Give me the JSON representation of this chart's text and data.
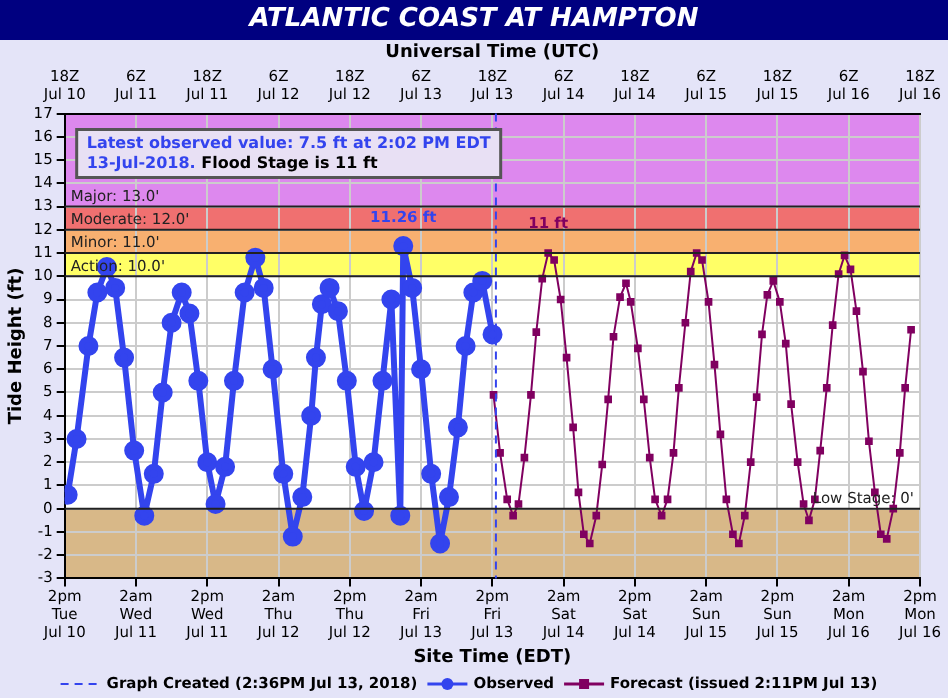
{
  "chart_data": {
    "type": "line",
    "title": "ATLANTIC COAST AT HAMPTON",
    "x2label": "Universal Time (UTC)",
    "xlabel": "Site Time (EDT)",
    "ylabel": "Tide Height (ft)",
    "xlim": [
      "2018-07-10T14:00",
      "2018-07-16T14:00"
    ],
    "x2lim": [
      "2018-07-10T18:00",
      "2018-07-16T18:00"
    ],
    "ylim": [
      -3,
      17
    ],
    "xticks": [
      {
        "value": "2018-07-10T14:00",
        "label": "2pm\nTue\nJul 10"
      },
      {
        "value": "2018-07-11T02:00",
        "label": "2am\nWed\nJul 11"
      },
      {
        "value": "2018-07-11T14:00",
        "label": "2pm\nWed\nJul 11"
      },
      {
        "value": "2018-07-12T02:00",
        "label": "2am\nThu\nJul 12"
      },
      {
        "value": "2018-07-12T14:00",
        "label": "2pm\nThu\nJul 12"
      },
      {
        "value": "2018-07-13T02:00",
        "label": "2am\nFri\nJul 13"
      },
      {
        "value": "2018-07-13T14:00",
        "label": "2pm\nFri\nJul 13"
      },
      {
        "value": "2018-07-14T02:00",
        "label": "2am\nSat\nJul 14"
      },
      {
        "value": "2018-07-14T14:00",
        "label": "2pm\nSat\nJul 14"
      },
      {
        "value": "2018-07-15T02:00",
        "label": "2am\nSun\nJul 15"
      },
      {
        "value": "2018-07-15T14:00",
        "label": "2pm\nSun\nJul 15"
      },
      {
        "value": "2018-07-16T02:00",
        "label": "2am\nMon\nJul 16"
      },
      {
        "value": "2018-07-16T14:00",
        "label": "2pm\nMon\nJul 16"
      }
    ],
    "x2ticks": [
      {
        "value": "2018-07-10T18:00",
        "label": "18Z\nJul 10"
      },
      {
        "value": "2018-07-11T06:00",
        "label": "6Z\nJul 11"
      },
      {
        "value": "2018-07-11T18:00",
        "label": "18Z\nJul 11"
      },
      {
        "value": "2018-07-12T06:00",
        "label": "6Z\nJul 12"
      },
      {
        "value": "2018-07-12T18:00",
        "label": "18Z\nJul 12"
      },
      {
        "value": "2018-07-13T06:00",
        "label": "6Z\nJul 13"
      },
      {
        "value": "2018-07-13T18:00",
        "label": "18Z\nJul 13"
      },
      {
        "value": "2018-07-14T06:00",
        "label": "6Z\nJul 14"
      },
      {
        "value": "2018-07-14T18:00",
        "label": "18Z\nJul 14"
      },
      {
        "value": "2018-07-15T06:00",
        "label": "6Z\nJul 15"
      },
      {
        "value": "2018-07-15T18:00",
        "label": "18Z\nJul 15"
      },
      {
        "value": "2018-07-16T06:00",
        "label": "6Z\nJul 16"
      },
      {
        "value": "2018-07-16T18:00",
        "label": "18Z\nJul 16"
      }
    ],
    "yticks": [
      -3,
      -2,
      -1,
      0,
      1,
      2,
      3,
      4,
      5,
      6,
      7,
      8,
      9,
      10,
      11,
      12,
      13,
      14,
      15,
      16,
      17
    ],
    "grid": true,
    "legend": "bottom",
    "line_style": "solid",
    "bands": [
      {
        "axis": "y",
        "from": 13,
        "to": 17,
        "label": "Major: 13.0'",
        "color": "#dd88ee"
      },
      {
        "axis": "y",
        "from": 12,
        "to": 13,
        "label": "Moderate: 12.0'",
        "color": "#f07070"
      },
      {
        "axis": "y",
        "from": 11,
        "to": 12,
        "label": "Minor: 11.0'",
        "color": "#f8b070"
      },
      {
        "axis": "y",
        "from": 10,
        "to": 11,
        "label": "Action: 10.0'",
        "color": "#ffff66"
      },
      {
        "axis": "y",
        "from": -3,
        "to": 0,
        "label": "Low Stage: 0'",
        "color": "#d8b888"
      }
    ],
    "ref_lines": [
      {
        "axis": "x",
        "value": "2018-07-13T14:36",
        "label": "Graph Created (2:36PM Jul 13, 2018)",
        "color": "#3344ee",
        "line_style": "dashed"
      }
    ],
    "annotations": [
      "Latest observed value: 7.5 ft at 2:02 PM EDT 13-Jul-2018.",
      "Flood Stage is 11 ft",
      {
        "text": "11.26 ft",
        "x": "2018-07-12T23:00",
        "y": 11.26
      },
      {
        "text": "11 ft",
        "x": "2018-07-13T23:24",
        "y": 11
      }
    ],
    "series": [
      {
        "name": "Observed",
        "color": "#3344ee",
        "marker": "circle",
        "x": [
          "2018-07-10T14:30",
          "2018-07-10T16:00",
          "2018-07-10T18:00",
          "2018-07-10T19:30",
          "2018-07-10T21:06",
          "2018-07-10T22:30",
          "2018-07-11T00:00",
          "2018-07-11T01:42",
          "2018-07-11T03:24",
          "2018-07-11T05:00",
          "2018-07-11T06:30",
          "2018-07-11T08:00",
          "2018-07-11T09:42",
          "2018-07-11T11:00",
          "2018-07-11T12:30",
          "2018-07-11T14:00",
          "2018-07-11T15:24",
          "2018-07-11T17:00",
          "2018-07-11T18:30",
          "2018-07-11T20:18",
          "2018-07-11T22:06",
          "2018-07-11T23:30",
          "2018-07-12T01:00",
          "2018-07-12T02:48",
          "2018-07-12T04:24",
          "2018-07-12T06:00",
          "2018-07-12T07:30",
          "2018-07-12T08:18",
          "2018-07-12T09:18",
          "2018-07-12T10:36",
          "2018-07-12T12:00",
          "2018-07-12T13:30",
          "2018-07-12T15:00",
          "2018-07-12T16:24",
          "2018-07-12T18:00",
          "2018-07-12T19:30",
          "2018-07-12T21:00",
          "2018-07-12T22:30",
          "2018-07-12T23:00",
          "2018-07-13T00:30",
          "2018-07-13T02:00",
          "2018-07-13T03:42",
          "2018-07-13T05:12",
          "2018-07-13T06:42",
          "2018-07-13T08:12",
          "2018-07-13T09:30",
          "2018-07-13T10:48",
          "2018-07-13T12:18",
          "2018-07-13T14:02"
        ],
        "values": [
          0.6,
          3,
          7,
          9.3,
          10.4,
          9.5,
          6.5,
          2.5,
          -0.3,
          1.5,
          5,
          8,
          9.3,
          8.4,
          5.5,
          2,
          0.2,
          1.8,
          5.5,
          9.3,
          10.8,
          9.5,
          6,
          1.5,
          -1.2,
          0.5,
          4,
          6.5,
          8.8,
          9.5,
          8.5,
          5.5,
          1.8,
          -0.1,
          2,
          5.5,
          9,
          -0.3,
          11.3,
          9.5,
          6,
          1.5,
          -1.5,
          0.5,
          3.5,
          7,
          9.3,
          9.8,
          7.5
        ]
      },
      {
        "name": "Forecast (issued 2:11PM Jul 13)",
        "color": "#800060",
        "marker": "square",
        "x": [
          "2018-07-13T14:12",
          "2018-07-13T15:18",
          "2018-07-13T16:30",
          "2018-07-13T17:30",
          "2018-07-13T18:24",
          "2018-07-13T19:24",
          "2018-07-13T20:30",
          "2018-07-13T21:24",
          "2018-07-13T22:24",
          "2018-07-13T23:24",
          "2018-07-14T00:24",
          "2018-07-14T01:30",
          "2018-07-14T02:30",
          "2018-07-14T03:36",
          "2018-07-14T04:30",
          "2018-07-14T05:24",
          "2018-07-14T06:24",
          "2018-07-14T07:30",
          "2018-07-14T08:30",
          "2018-07-14T09:30",
          "2018-07-14T10:24",
          "2018-07-14T11:30",
          "2018-07-14T12:30",
          "2018-07-14T13:18",
          "2018-07-14T14:30",
          "2018-07-14T15:30",
          "2018-07-14T16:30",
          "2018-07-14T17:24",
          "2018-07-14T18:30",
          "2018-07-14T19:30",
          "2018-07-14T20:30",
          "2018-07-14T21:24",
          "2018-07-14T22:30",
          "2018-07-14T23:24",
          "2018-07-15T00:24",
          "2018-07-15T01:18",
          "2018-07-15T02:24",
          "2018-07-15T03:24",
          "2018-07-15T04:24",
          "2018-07-15T05:24",
          "2018-07-15T06:30",
          "2018-07-15T07:30",
          "2018-07-15T08:30",
          "2018-07-15T09:30",
          "2018-07-15T10:30",
          "2018-07-15T11:24",
          "2018-07-15T12:18",
          "2018-07-15T13:18",
          "2018-07-15T14:24",
          "2018-07-15T15:24",
          "2018-07-15T16:18",
          "2018-07-15T17:24",
          "2018-07-15T18:24",
          "2018-07-15T19:18",
          "2018-07-15T20:18",
          "2018-07-15T21:12",
          "2018-07-15T22:18",
          "2018-07-15T23:18",
          "2018-07-16T00:18",
          "2018-07-16T01:18",
          "2018-07-16T02:18",
          "2018-07-16T03:18",
          "2018-07-16T04:24",
          "2018-07-16T05:24",
          "2018-07-16T06:24",
          "2018-07-16T07:24",
          "2018-07-16T08:24",
          "2018-07-16T09:30",
          "2018-07-16T10:36",
          "2018-07-16T11:30",
          "2018-07-16T12:30"
        ],
        "values": [
          4.9,
          2.4,
          0.4,
          -0.3,
          0.2,
          2.2,
          4.9,
          7.6,
          9.9,
          11,
          10.7,
          9,
          6.5,
          3.5,
          0.7,
          -1.1,
          -1.5,
          -0.3,
          1.9,
          4.7,
          7.4,
          9.1,
          9.7,
          8.9,
          6.9,
          4.7,
          2.2,
          0.4,
          -0.3,
          0.4,
          2.4,
          5.2,
          8,
          10.2,
          11,
          10.7,
          8.9,
          6.2,
          3.2,
          0.4,
          -1.1,
          -1.5,
          -0.3,
          2,
          4.8,
          7.5,
          9.2,
          9.8,
          8.9,
          7.1,
          4.5,
          2,
          0.2,
          -0.5,
          0.4,
          2.5,
          5.2,
          7.9,
          10.1,
          10.9,
          10.3,
          8.5,
          5.9,
          2.9,
          0.7,
          -1.1,
          -1.3,
          0,
          2.4,
          5.2,
          7.7
        ]
      }
    ]
  }
}
